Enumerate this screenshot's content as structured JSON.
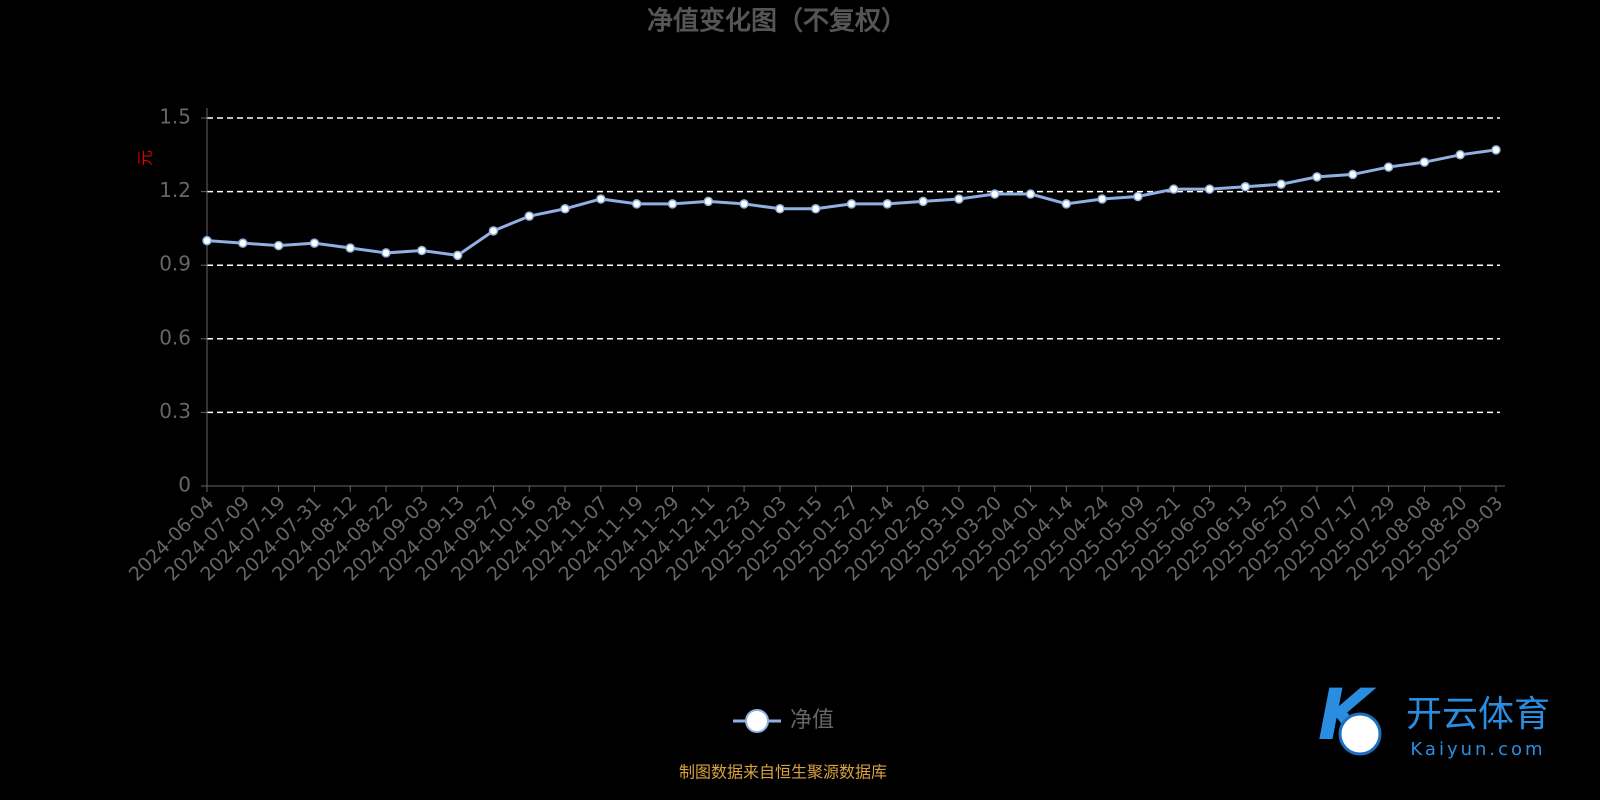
{
  "chart_data": {
    "type": "line",
    "title": "净值变化图（不复权）",
    "y_label": "元",
    "categories": [
      "2024-06-04",
      "2024-07-09",
      "2024-07-19",
      "2024-07-31",
      "2024-08-12",
      "2024-08-22",
      "2024-09-03",
      "2024-09-13",
      "2024-09-27",
      "2024-10-16",
      "2024-10-28",
      "2024-11-07",
      "2024-11-19",
      "2024-11-29",
      "2024-12-11",
      "2024-12-23",
      "2025-01-03",
      "2025-01-15",
      "2025-01-27",
      "2025-02-14",
      "2025-02-26",
      "2025-03-10",
      "2025-03-20",
      "2025-04-01",
      "2025-04-14",
      "2025-04-24",
      "2025-05-09",
      "2025-05-21",
      "2025-06-03",
      "2025-06-13",
      "2025-06-25",
      "2025-07-07",
      "2025-07-17",
      "2025-07-29",
      "2025-08-08",
      "2025-08-20",
      "2025-09-03"
    ],
    "series": [
      {
        "name": "净值",
        "color": "#8fb0e0",
        "values": [
          1.0,
          0.99,
          0.98,
          0.99,
          0.97,
          0.95,
          0.96,
          0.94,
          1.04,
          1.1,
          1.13,
          1.17,
          1.15,
          1.15,
          1.16,
          1.15,
          1.13,
          1.13,
          1.15,
          1.15,
          1.16,
          1.17,
          1.19,
          1.19,
          1.15,
          1.17,
          1.18,
          1.21,
          1.21,
          1.22,
          1.23,
          1.26,
          1.27,
          1.3,
          1.32,
          1.35,
          1.37
        ]
      }
    ],
    "ylim": [
      0,
      1.5
    ],
    "yticks": [
      0,
      0.3,
      0.6,
      0.9,
      1.2,
      1.5
    ],
    "grid": true,
    "source": "制图数据来自恒生聚源数据库",
    "watermark": {
      "name": "开云体育",
      "url": "Kaiyun.com"
    }
  }
}
